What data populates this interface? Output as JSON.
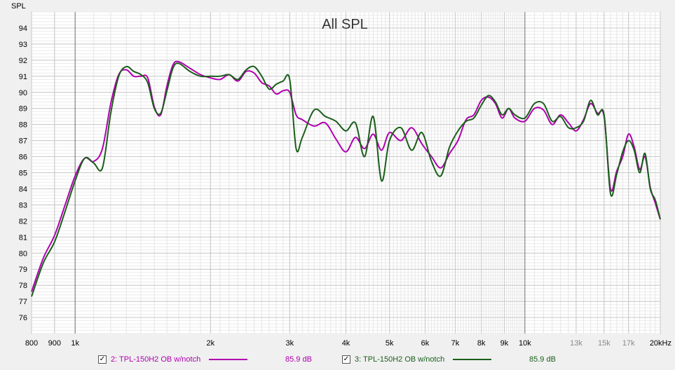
{
  "chart_data": {
    "type": "line",
    "title": "All SPL",
    "ylabel": "SPL",
    "xlabel": "",
    "x_scale": "log",
    "xlim": [
      800,
      20000
    ],
    "ylim": [
      75,
      95
    ],
    "grid": true,
    "y_ticks": [
      76,
      77,
      78,
      79,
      80,
      81,
      82,
      83,
      84,
      85,
      86,
      87,
      88,
      89,
      90,
      91,
      92,
      93,
      94
    ],
    "x_ticks": [
      {
        "v": 800,
        "label": "800"
      },
      {
        "v": 900,
        "label": "900"
      },
      {
        "v": 1000,
        "label": "1k"
      },
      {
        "v": 2000,
        "label": "2k"
      },
      {
        "v": 3000,
        "label": "3k"
      },
      {
        "v": 4000,
        "label": "4k"
      },
      {
        "v": 5000,
        "label": "5k"
      },
      {
        "v": 6000,
        "label": "6k"
      },
      {
        "v": 7000,
        "label": "7k"
      },
      {
        "v": 8000,
        "label": "8k"
      },
      {
        "v": 9000,
        "label": "9k"
      },
      {
        "v": 10000,
        "label": "10k"
      },
      {
        "v": 13000,
        "label": "13k",
        "dim": true
      },
      {
        "v": 15000,
        "label": "15k",
        "dim": true
      },
      {
        "v": 17000,
        "label": "17k",
        "dim": true
      },
      {
        "v": 20000,
        "label": "20kHz"
      }
    ],
    "series": [
      {
        "name": "2: TPL-150H2 OB w/notch",
        "color": "#b000b0",
        "value_label": "85.9 dB",
        "x": [
          800,
          850,
          900,
          950,
          1000,
          1050,
          1100,
          1150,
          1200,
          1250,
          1300,
          1350,
          1400,
          1450,
          1500,
          1550,
          1600,
          1650,
          1700,
          1800,
          1900,
          2000,
          2100,
          2200,
          2300,
          2400,
          2500,
          2600,
          2700,
          2800,
          2900,
          3000,
          3100,
          3200,
          3400,
          3600,
          3800,
          4000,
          4200,
          4400,
          4600,
          4800,
          5000,
          5300,
          5600,
          5900,
          6200,
          6500,
          6800,
          7100,
          7400,
          7700,
          8000,
          8300,
          8600,
          8900,
          9200,
          9500,
          10000,
          10500,
          11000,
          11500,
          12000,
          12500,
          13000,
          13500,
          14000,
          14500,
          15000,
          15500,
          16000,
          16500,
          17000,
          17500,
          18000,
          18500,
          19000,
          19500,
          20000
        ],
        "y": [
          77.6,
          79.7,
          81.1,
          83.0,
          84.8,
          85.9,
          85.7,
          86.5,
          89.3,
          91.1,
          91.4,
          91.0,
          91.0,
          90.9,
          89.1,
          88.6,
          90.4,
          91.7,
          91.9,
          91.5,
          91.1,
          90.9,
          90.8,
          91.1,
          90.7,
          91.3,
          91.2,
          90.6,
          90.4,
          89.9,
          90.1,
          90.0,
          88.6,
          88.3,
          87.9,
          88.1,
          87.1,
          86.3,
          87.2,
          86.5,
          87.4,
          86.4,
          87.5,
          87.0,
          87.8,
          86.8,
          86.0,
          85.3,
          86.2,
          87.0,
          88.3,
          88.6,
          89.5,
          89.7,
          89.3,
          88.4,
          89.0,
          88.4,
          88.2,
          89.0,
          88.9,
          88.0,
          88.6,
          88.1,
          87.6,
          88.3,
          89.3,
          88.7,
          88.5,
          84.0,
          85.1,
          86.0,
          87.4,
          86.6,
          85.2,
          86.0,
          84.1,
          83.1,
          82.1
        ]
      },
      {
        "name": "3: TPL-150H2 OB w/notch",
        "color": "#1a5e1a",
        "value_label": "85.9 dB",
        "x": [
          800,
          850,
          900,
          950,
          1000,
          1050,
          1100,
          1150,
          1200,
          1250,
          1300,
          1350,
          1400,
          1450,
          1500,
          1550,
          1600,
          1650,
          1700,
          1800,
          1900,
          2000,
          2100,
          2200,
          2300,
          2400,
          2500,
          2600,
          2700,
          2800,
          2900,
          3000,
          3100,
          3200,
          3400,
          3600,
          3800,
          4000,
          4200,
          4400,
          4600,
          4800,
          5000,
          5300,
          5600,
          5900,
          6200,
          6500,
          6800,
          7100,
          7400,
          7700,
          8000,
          8300,
          8600,
          8900,
          9200,
          9500,
          10000,
          10500,
          11000,
          11500,
          12000,
          12500,
          13000,
          13500,
          14000,
          14500,
          15000,
          15500,
          16000,
          16500,
          17000,
          17500,
          18000,
          18500,
          19000,
          19500,
          20000
        ],
        "y": [
          77.3,
          79.4,
          80.7,
          82.6,
          84.5,
          85.9,
          85.6,
          85.3,
          88.7,
          91.0,
          91.6,
          91.3,
          91.1,
          90.6,
          89.0,
          88.7,
          90.1,
          91.5,
          91.8,
          91.3,
          91.0,
          91.0,
          91.0,
          91.1,
          90.8,
          91.4,
          91.6,
          91.0,
          90.2,
          90.5,
          90.7,
          90.8,
          86.5,
          87.2,
          88.9,
          88.5,
          88.2,
          87.6,
          88.1,
          86.0,
          88.5,
          84.5,
          87.0,
          87.8,
          86.4,
          87.5,
          85.7,
          84.8,
          86.6,
          87.6,
          88.2,
          88.4,
          89.2,
          89.8,
          89.4,
          88.6,
          89.0,
          88.6,
          88.4,
          89.3,
          89.3,
          88.2,
          88.5,
          87.8,
          87.8,
          88.2,
          89.5,
          88.6,
          88.6,
          83.7,
          84.9,
          86.3,
          87.0,
          86.4,
          85.0,
          86.2,
          84.0,
          83.3,
          82.1
        ]
      }
    ]
  }
}
